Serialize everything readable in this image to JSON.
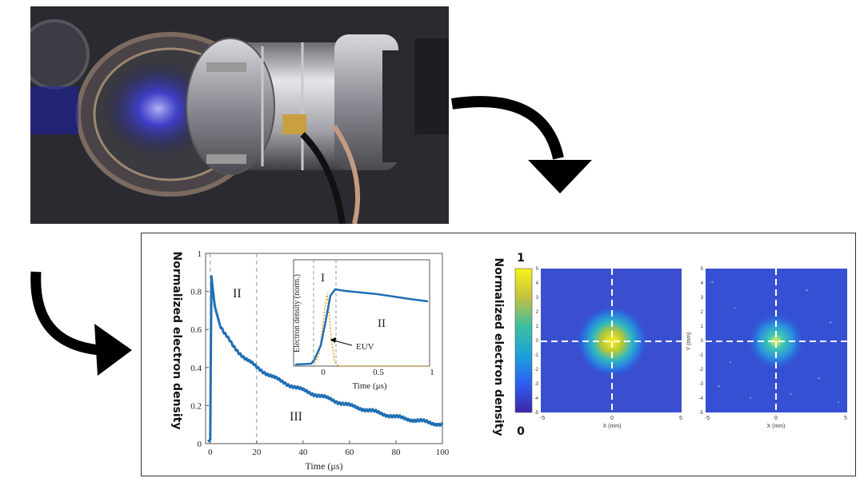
{
  "photo": {
    "description_icon": "plasma-chamber-photo"
  },
  "main_plot": {
    "ylabel": "Normalized electron density",
    "xlabel": "Time (μs)",
    "region_II": "II",
    "region_III": "III",
    "x_ticks": [
      "0",
      "20",
      "40",
      "60",
      "80",
      "100"
    ],
    "y_ticks": [
      "0",
      "0.2",
      "0.4",
      "0.6",
      "0.8",
      "1"
    ]
  },
  "inset": {
    "ylabel": "Electron density (norm.)",
    "xlabel": "Time (μs)",
    "region_I": "I",
    "region_II": "II",
    "euv_label": "EUV",
    "x_ticks": [
      "0",
      "0.5",
      "1"
    ]
  },
  "images": {
    "colorbar_label": "Normalized electron density",
    "colorbar_max": "1",
    "colorbar_min": "0",
    "xlabel": "X (mm)",
    "ylabel_right": "Y (mm)",
    "ticks": [
      "-5",
      "-4",
      "-3",
      "-2",
      "-1",
      "0",
      "1",
      "2",
      "3",
      "4",
      "5"
    ],
    "x_ticks": [
      "-5",
      "0",
      "5"
    ]
  },
  "chart_data": {
    "type": "line",
    "title": "",
    "xlabel": "Time (μs)",
    "ylabel": "Normalized electron density",
    "xlim": [
      -2,
      100
    ],
    "ylim": [
      0,
      1
    ],
    "series": [
      {
        "x": [
          -1,
          0,
          0.5,
          1,
          2,
          4,
          6,
          10,
          15,
          20,
          30,
          40,
          50,
          60,
          70,
          80,
          90,
          100
        ],
        "values": [
          0.01,
          0.02,
          0.88,
          0.82,
          0.72,
          0.63,
          0.58,
          0.51,
          0.45,
          0.4,
          0.33,
          0.28,
          0.24,
          0.2,
          0.17,
          0.14,
          0.12,
          0.1
        ]
      }
    ],
    "vlines": [
      0,
      20
    ]
  }
}
